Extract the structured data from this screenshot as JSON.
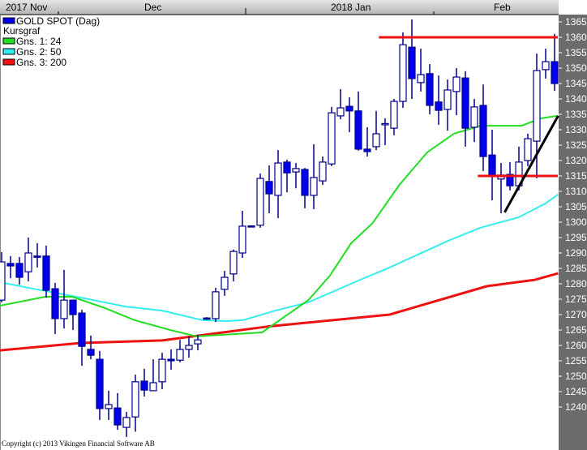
{
  "chart_data": {
    "type": "candlestick",
    "x_axis": {
      "labels": [
        "2017 Nov",
        "Dec",
        "2018 Jan",
        "Feb"
      ],
      "position": "top"
    },
    "y_axis": {
      "ticks": [
        1240,
        1245,
        1250,
        1255,
        1260,
        1265,
        1270,
        1275,
        1280,
        1285,
        1290,
        1295,
        1300,
        1305,
        1310,
        1315,
        1320,
        1325,
        1330,
        1335,
        1340,
        1345,
        1350,
        1355,
        1360,
        1365
      ],
      "range": [
        1234,
        1366
      ],
      "position": "right"
    },
    "grid": false,
    "legend": {
      "placement": "top-left",
      "entries": [
        {
          "label": "GOLD SPOT (Dag)",
          "color": "#0000ee"
        },
        {
          "label": "Kursgraf",
          "color": null
        },
        {
          "label": "Gns. 1: 24",
          "color": "#22dd22"
        },
        {
          "label": "Gns. 2: 50",
          "color": "#33eeee"
        },
        {
          "label": "Gns. 3: 200",
          "color": "#ee1111"
        }
      ]
    },
    "colors": {
      "down_fill": "#0000ee",
      "up_fill": "#ffffff",
      "outline": "#00008b",
      "axis_bg": "#6b6b6b",
      "header_bg": "#c8c8c8"
    },
    "ohlc": [
      [
        1274.7,
        1290.3,
        1274.0,
        1287.1
      ],
      [
        1286.6,
        1289.0,
        1281.8,
        1285.8
      ],
      [
        1286.6,
        1288.7,
        1279.7,
        1282.1
      ],
      [
        1283.9,
        1295.0,
        1280.8,
        1290.0
      ],
      [
        1289.0,
        1293.2,
        1285.3,
        1288.7
      ],
      [
        1289.0,
        1292.4,
        1275.5,
        1277.9
      ],
      [
        1278.4,
        1280.3,
        1263.7,
        1268.7
      ],
      [
        1268.7,
        1284.5,
        1265.5,
        1274.7
      ],
      [
        1274.7,
        1274.7,
        1265.0,
        1270.0
      ],
      [
        1270.5,
        1271.6,
        1253.4,
        1259.7
      ],
      [
        1258.7,
        1263.2,
        1255.5,
        1256.8
      ],
      [
        1255.5,
        1258.2,
        1235.8,
        1239.5
      ],
      [
        1239.5,
        1245.3,
        1235.8,
        1240.8
      ],
      [
        1239.7,
        1244.5,
        1232.6,
        1234.2
      ],
      [
        1233.4,
        1238.4,
        1230.3,
        1236.6
      ],
      [
        1236.8,
        1250.5,
        1232.0,
        1248.2
      ],
      [
        1248.4,
        1252.4,
        1243.4,
        1245.5
      ],
      [
        1245.3,
        1255.5,
        1245.3,
        1247.9
      ],
      [
        1248.2,
        1257.6,
        1245.8,
        1255.5
      ],
      [
        1255.5,
        1258.7,
        1252.1,
        1255.0
      ],
      [
        1255.2,
        1261.8,
        1254.5,
        1258.7
      ],
      [
        1258.7,
        1262.9,
        1256.0,
        1260.0
      ],
      [
        1260.5,
        1263.4,
        1258.4,
        1261.8
      ],
      [
        1268.9,
        1269.2,
        1268.3,
        1268.6
      ],
      [
        1268.7,
        1278.7,
        1267.6,
        1277.4
      ],
      [
        1278.2,
        1284.2,
        1276.1,
        1282.1
      ],
      [
        1283.2,
        1291.1,
        1280.8,
        1290.5
      ],
      [
        1290.0,
        1303.7,
        1288.4,
        1298.7
      ],
      [
        1298.8,
        1298.9,
        1298.5,
        1298.7
      ],
      [
        1299.0,
        1315.8,
        1298.2,
        1314.2
      ],
      [
        1313.2,
        1318.4,
        1302.9,
        1309.2
      ],
      [
        1308.7,
        1323.4,
        1301.3,
        1319.2
      ],
      [
        1319.5,
        1320.3,
        1309.7,
        1316.0
      ],
      [
        1316.3,
        1319.2,
        1311.0,
        1317.4
      ],
      [
        1317.1,
        1317.6,
        1304.5,
        1308.7
      ],
      [
        1308.7,
        1325.3,
        1304.2,
        1314.5
      ],
      [
        1313.4,
        1321.3,
        1312.1,
        1319.5
      ],
      [
        1318.9,
        1337.4,
        1318.2,
        1335.5
      ],
      [
        1334.5,
        1343.2,
        1333.4,
        1337.1
      ],
      [
        1337.6,
        1340.5,
        1329.2,
        1336.1
      ],
      [
        1336.1,
        1342.4,
        1323.2,
        1323.7
      ],
      [
        1323.7,
        1330.8,
        1321.3,
        1322.9
      ],
      [
        1324.5,
        1336.1,
        1323.4,
        1328.7
      ],
      [
        1331.7,
        1333.7,
        1325.0,
        1332.0
      ],
      [
        1330.5,
        1340.0,
        1328.2,
        1339.2
      ],
      [
        1339.2,
        1361.6,
        1337.1,
        1357.6
      ],
      [
        1356.8,
        1365.8,
        1340.0,
        1346.6
      ],
      [
        1345.3,
        1356.3,
        1342.4,
        1347.9
      ],
      [
        1348.2,
        1351.3,
        1335.0,
        1337.9
      ],
      [
        1339.0,
        1347.6,
        1331.6,
        1336.3
      ],
      [
        1336.6,
        1346.3,
        1329.7,
        1342.9
      ],
      [
        1342.4,
        1350.0,
        1334.7,
        1347.1
      ],
      [
        1346.8,
        1349.0,
        1324.5,
        1330.5
      ],
      [
        1330.8,
        1340.0,
        1326.0,
        1337.4
      ],
      [
        1337.9,
        1344.7,
        1316.6,
        1321.3
      ],
      [
        1321.8,
        1330.0,
        1307.1,
        1315.0
      ],
      [
        1314.0,
        1319.2,
        1302.9,
        1315.3
      ],
      [
        1315.5,
        1319.5,
        1310.3,
        1311.8
      ],
      [
        1311.8,
        1324.5,
        1310.3,
        1319.5
      ],
      [
        1320.0,
        1328.7,
        1318.2,
        1327.1
      ],
      [
        1326.3,
        1354.7,
        1314.2,
        1349.2
      ],
      [
        1349.5,
        1356.3,
        1346.6,
        1352.1
      ],
      [
        1352.1,
        1361.1,
        1342.6,
        1345.0
      ]
    ],
    "moving_averages": [
      {
        "name": "Gns. 1: 24",
        "color": "#22dd22",
        "points": [
          [
            -0.2,
            1272.9
          ],
          [
            4.9,
            1275.8
          ],
          [
            7.9,
            1275.8
          ],
          [
            11.6,
            1272.1
          ],
          [
            14.9,
            1268.2
          ],
          [
            18.9,
            1265.0
          ],
          [
            21.9,
            1262.9
          ],
          [
            23.5,
            1263.2
          ],
          [
            29.2,
            1264.2
          ],
          [
            34.4,
            1274.7
          ],
          [
            36.8,
            1282.6
          ],
          [
            39.2,
            1293.2
          ],
          [
            41.6,
            1299.7
          ],
          [
            44.6,
            1312.1
          ],
          [
            47.7,
            1322.6
          ],
          [
            50.7,
            1328.7
          ],
          [
            53.7,
            1331.3
          ],
          [
            58.3,
            1331.3
          ],
          [
            60.5,
            1333.7
          ],
          [
            62.3,
            1334.5
          ]
        ]
      },
      {
        "name": "Gns. 2: 50",
        "color": "#33eeee",
        "points": [
          [
            -0.2,
            1280.5
          ],
          [
            3.9,
            1278.2
          ],
          [
            8.9,
            1275.5
          ],
          [
            13.9,
            1272.6
          ],
          [
            18.0,
            1271.3
          ],
          [
            22.5,
            1268.2
          ],
          [
            25.3,
            1267.9
          ],
          [
            27.1,
            1268.2
          ],
          [
            30.7,
            1271.3
          ],
          [
            34.4,
            1274.0
          ],
          [
            39.8,
            1280.8
          ],
          [
            43.5,
            1285.3
          ],
          [
            50.1,
            1294.0
          ],
          [
            53.7,
            1298.2
          ],
          [
            58.0,
            1301.6
          ],
          [
            61.0,
            1306.1
          ],
          [
            62.4,
            1309.0
          ]
        ]
      },
      {
        "name": "Gns. 3: 200",
        "color": "#ee1111",
        "points": [
          [
            -0.2,
            1258.4
          ],
          [
            8.9,
            1260.8
          ],
          [
            18.0,
            1261.6
          ],
          [
            23.5,
            1263.7
          ],
          [
            29.8,
            1266.1
          ],
          [
            43.5,
            1270.0
          ],
          [
            54.4,
            1279.2
          ],
          [
            59.8,
            1281.3
          ],
          [
            62.4,
            1283.4
          ]
        ]
      }
    ],
    "annotations": [
      {
        "type": "horizontal-line",
        "value": 1360,
        "from_bar": 42.3,
        "color": "#ee1111"
      },
      {
        "type": "horizontal-line",
        "value": 1315,
        "from_bar": 53.4,
        "color": "#ee1111"
      },
      {
        "type": "trendline",
        "from": [
          56.4,
          1303.2
        ],
        "to": [
          62.4,
          1334.5
        ],
        "color": "#000000"
      }
    ]
  },
  "footer": {
    "copyright": "Copyright (c) 2013 Vikingen Financial Software AB"
  }
}
